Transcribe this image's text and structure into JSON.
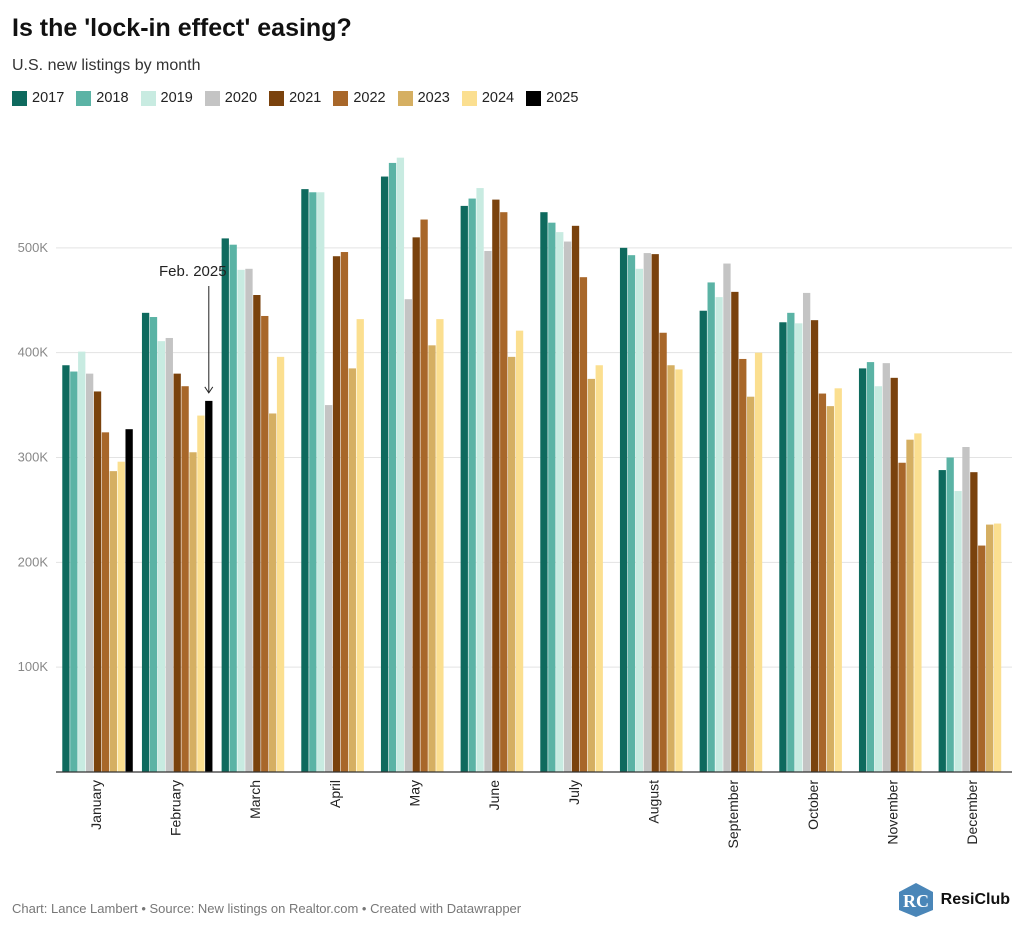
{
  "title": "Is the 'lock-in effect' easing?",
  "subtitle": "U.S. new listings by month",
  "footer": "Chart: Lance Lambert • Source: New listings on Realtor.com • Created with Datawrapper",
  "brand": {
    "name": "ResiClub",
    "icon": "resiclub-logo-icon",
    "monogram": "RC",
    "color": "#4a86b8"
  },
  "chart_data": {
    "type": "bar",
    "title": "Is the 'lock-in effect' easing?",
    "subtitle": "U.S. new listings by month",
    "categories": [
      "January",
      "February",
      "March",
      "April",
      "May",
      "June",
      "July",
      "August",
      "September",
      "October",
      "November",
      "December"
    ],
    "ylim": [
      0,
      600000
    ],
    "yticks": [
      100000,
      200000,
      300000,
      400000,
      500000
    ],
    "ytick_labels": [
      "100K",
      "200K",
      "300K",
      "400K",
      "500K"
    ],
    "grid": true,
    "legend_position": "top-left",
    "annotation": {
      "text": "Feb. 2025",
      "category": "February",
      "series": "2025"
    },
    "series": [
      {
        "name": "2017",
        "color": "#0e6a5e",
        "values": [
          388000,
          438000,
          509000,
          556000,
          568000,
          540000,
          534000,
          500000,
          440000,
          429000,
          385000,
          288000
        ]
      },
      {
        "name": "2018",
        "color": "#5bb3a5",
        "values": [
          382000,
          434000,
          503000,
          553000,
          581000,
          547000,
          524000,
          493000,
          467000,
          438000,
          391000,
          300000
        ]
      },
      {
        "name": "2019",
        "color": "#c8ebe1",
        "values": [
          401000,
          411000,
          479000,
          553000,
          586000,
          557000,
          515000,
          480000,
          453000,
          428000,
          368000,
          268000
        ]
      },
      {
        "name": "2020",
        "color": "#c4c4c4",
        "values": [
          380000,
          414000,
          480000,
          350000,
          451000,
          497000,
          506000,
          495000,
          485000,
          457000,
          390000,
          310000
        ]
      },
      {
        "name": "2021",
        "color": "#7a420d",
        "values": [
          363000,
          380000,
          455000,
          492000,
          510000,
          546000,
          521000,
          494000,
          458000,
          431000,
          376000,
          286000
        ]
      },
      {
        "name": "2022",
        "color": "#a8672a",
        "values": [
          324000,
          368000,
          435000,
          496000,
          527000,
          534000,
          472000,
          419000,
          394000,
          361000,
          295000,
          216000
        ]
      },
      {
        "name": "2023",
        "color": "#d5af62",
        "values": [
          287000,
          305000,
          342000,
          385000,
          407000,
          396000,
          375000,
          388000,
          358000,
          349000,
          317000,
          236000
        ]
      },
      {
        "name": "2024",
        "color": "#fbdf90",
        "values": [
          296000,
          340000,
          396000,
          432000,
          432000,
          421000,
          388000,
          384000,
          400000,
          366000,
          323000,
          237000
        ]
      },
      {
        "name": "2025",
        "color": "#000000",
        "values": [
          327000,
          354000,
          null,
          null,
          null,
          null,
          null,
          null,
          null,
          null,
          null,
          null
        ]
      }
    ]
  }
}
